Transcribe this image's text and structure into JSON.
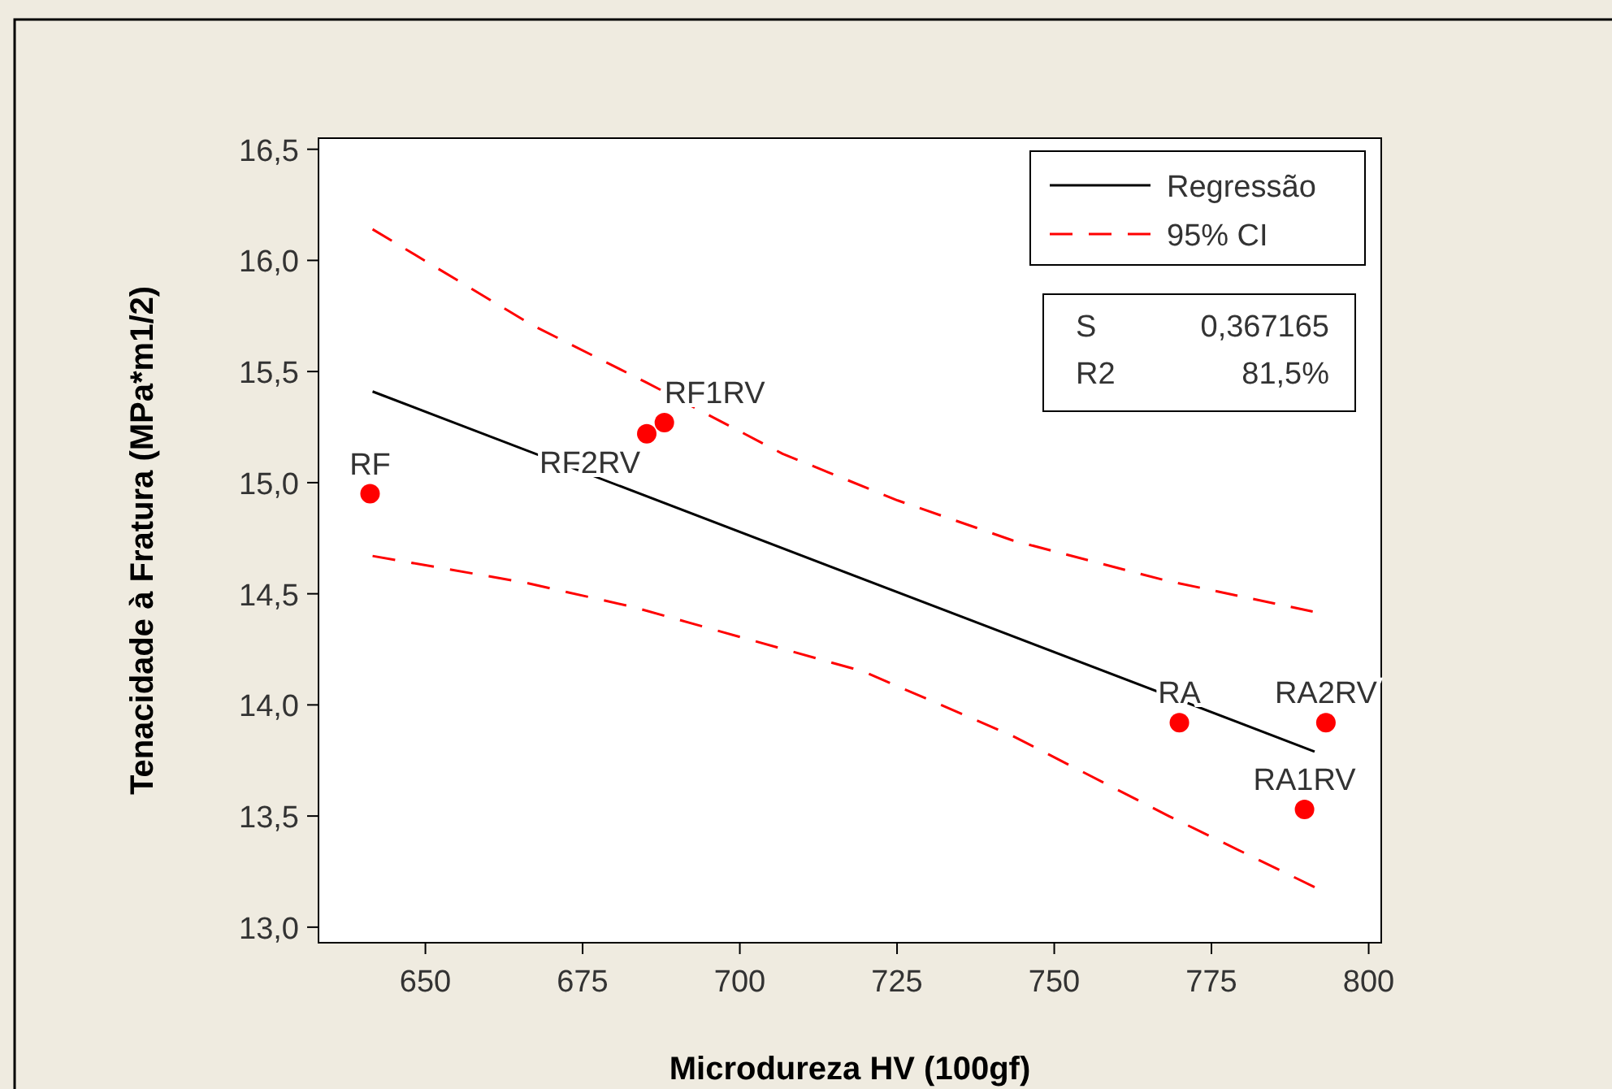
{
  "chart_data": {
    "type": "scatter",
    "xlabel": "Microdureza HV (100gf)",
    "ylabel": "Tenacidade à Fratura (MPa*m1/2)",
    "xlim": [
      633,
      802
    ],
    "ylim": [
      12.93,
      16.55
    ],
    "xticks": [
      650,
      675,
      700,
      725,
      750,
      775,
      800
    ],
    "yticks": [
      {
        "value": 13,
        "label": "13,0"
      },
      {
        "value": 13.5,
        "label": "13,5"
      },
      {
        "value": 14,
        "label": "14,0"
      },
      {
        "value": 14.5,
        "label": "14,5"
      },
      {
        "value": 15,
        "label": "15,0"
      },
      {
        "value": 15.5,
        "label": "15,5"
      },
      {
        "value": 16,
        "label": "16,0"
      },
      {
        "value": 16.5,
        "label": "16,5"
      }
    ],
    "grid": false,
    "legend": "top right",
    "marker": "circle",
    "series": [
      {
        "type": "line",
        "name": "Regressão",
        "color": "#000000",
        "line_style": "solid",
        "marker": "none",
        "x": [
          641.6,
          791.4
        ],
        "values": [
          15.41,
          13.79
        ]
      },
      {
        "type": "line",
        "name": "95% CI",
        "color": "#ff0000",
        "line_style": "dashed",
        "marker": "none",
        "x": [
          641.6,
          666.9,
          685.2,
          706.8,
          725.1,
          743.4,
          767.7,
          791.1
        ],
        "values": [
          16.14,
          15.71,
          15.45,
          15.13,
          14.92,
          14.74,
          14.56,
          14.42
        ]
      },
      {
        "type": "line",
        "color": "#ff0000",
        "line_style": "dashed",
        "marker": "none",
        "x": [
          641.6,
          665.9,
          683.1,
          719.7,
          743.4,
          768.2,
          791.4
        ],
        "values": [
          14.67,
          14.55,
          14.44,
          14.15,
          13.86,
          13.5,
          13.18
        ]
      },
      {
        "color": "#ff0000",
        "x": [
          641.2,
          685.2,
          688.0,
          769.9,
          793.2,
          789.8
        ],
        "values": [
          14.95,
          15.22,
          15.27,
          13.92,
          13.92,
          13.53
        ]
      }
    ],
    "annotations": [
      {
        "text": "RF",
        "x": 641.2,
        "y": 14.95
      },
      {
        "text": "RF2RV",
        "x": 685.2,
        "y": 15.22
      },
      {
        "text": "RF1RV",
        "x": 688.0,
        "y": 15.27
      },
      {
        "text": "RA",
        "x": 769.9,
        "y": 13.92
      },
      {
        "text": "RA2RV",
        "x": 793.2,
        "y": 13.92
      },
      {
        "text": "RA1RV",
        "x": 789.8,
        "y": 13.53
      },
      "S 0,367165",
      "R2 81,5%"
    ]
  }
}
